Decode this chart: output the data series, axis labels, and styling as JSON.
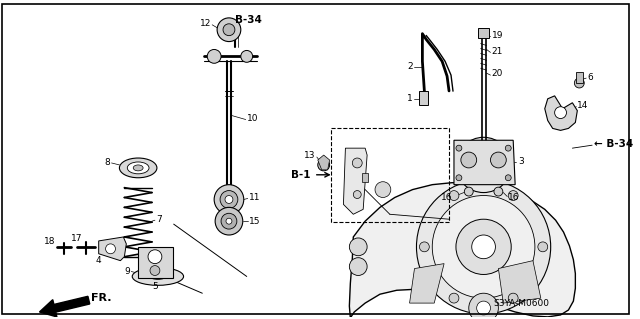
{
  "bg_color": "#ffffff",
  "fig_width": 6.4,
  "fig_height": 3.19,
  "dpi": 100,
  "label_font_size": 6.5,
  "bold_font_size": 7.5,
  "s3ya_text": "S3YA-M0600",
  "fr_text": "FR.",
  "b34_text": "B-34",
  "b1_text": "B-1"
}
